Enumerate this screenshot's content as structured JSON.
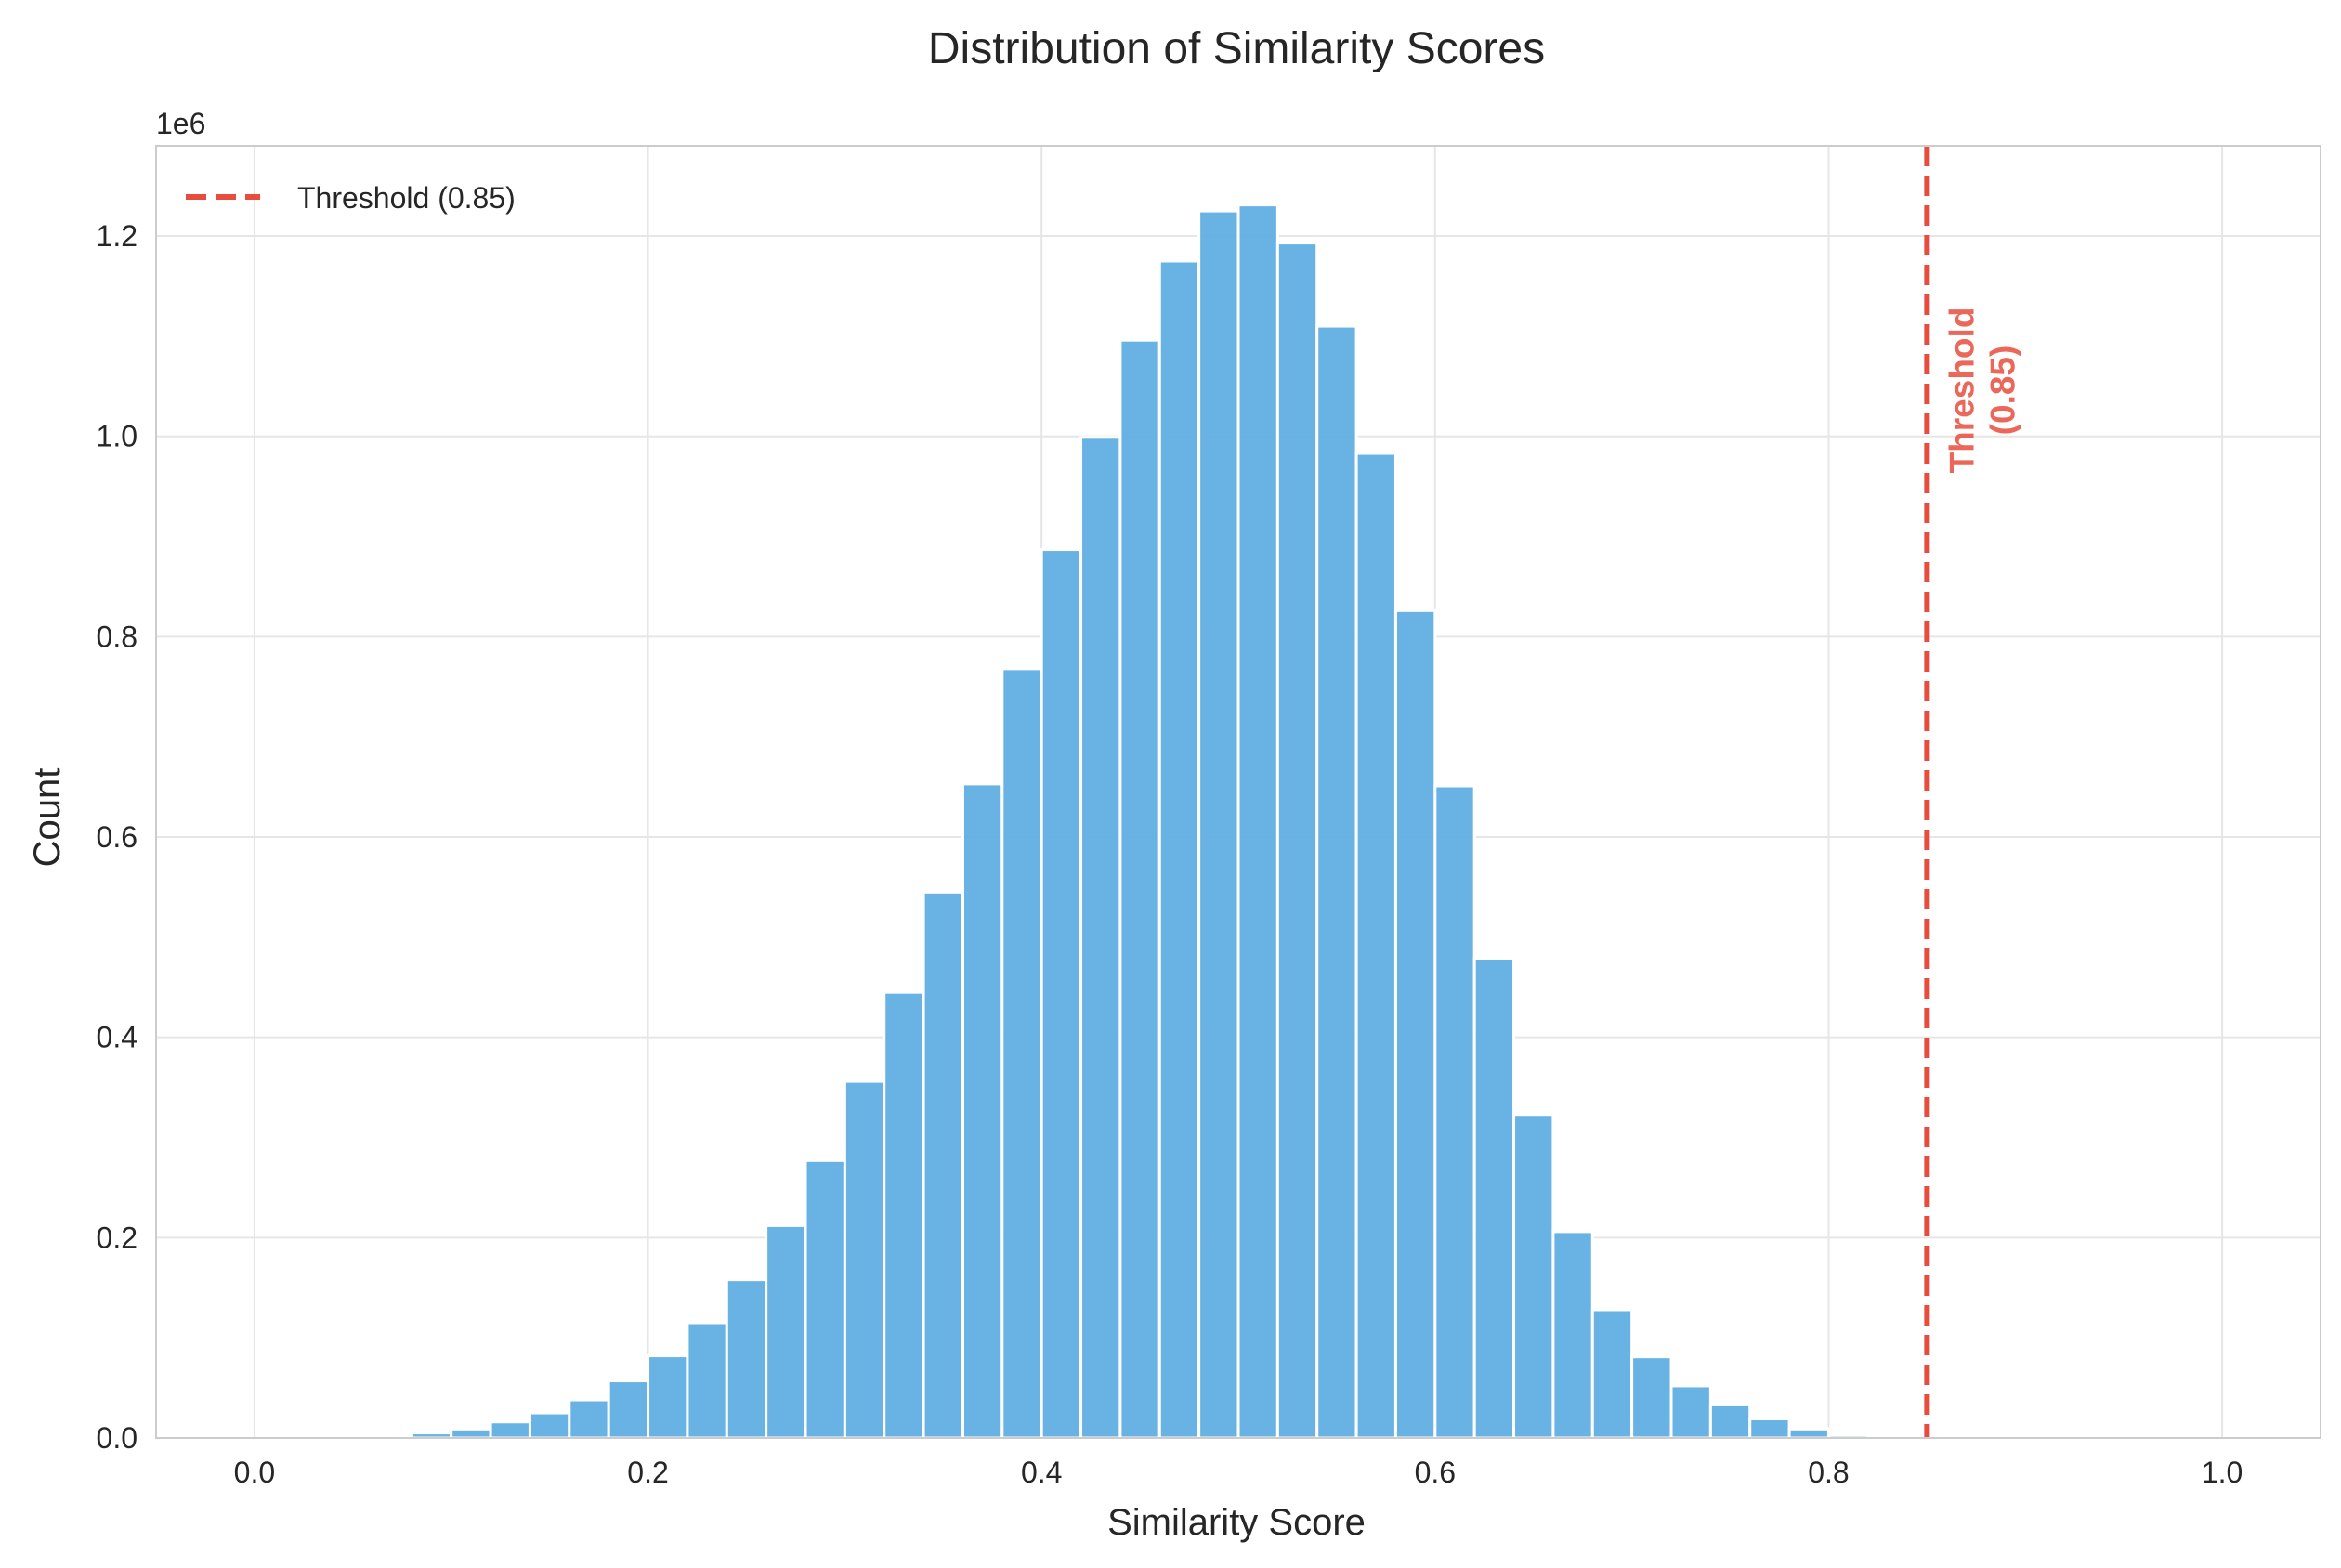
{
  "chart_data": {
    "type": "bar",
    "title": "Distribution of Similarity Scores",
    "xlabel": "Similarity Score",
    "ylabel": "Count",
    "y_scale_label": "1e6",
    "xlim": [
      -0.05,
      1.05
    ],
    "ylim": [
      0,
      1.29
    ],
    "x_ticks": [
      0.0,
      0.2,
      0.4,
      0.6,
      0.8,
      1.0
    ],
    "x_tick_labels": [
      "0.0",
      "0.2",
      "0.4",
      "0.6",
      "0.8",
      "1.0"
    ],
    "y_ticks": [
      0.0,
      0.2,
      0.4,
      0.6,
      0.8,
      1.0,
      1.2
    ],
    "y_tick_labels": [
      "0.0",
      "0.2",
      "0.4",
      "0.6",
      "0.8",
      "1.0",
      "1.2"
    ],
    "grid": true,
    "legend_position": "top-left",
    "bin_width": 0.02,
    "bin_starts": [
      0.06,
      0.08,
      0.1,
      0.12,
      0.14,
      0.16,
      0.18,
      0.2,
      0.22,
      0.24,
      0.26,
      0.28,
      0.3,
      0.32,
      0.34,
      0.36,
      0.38,
      0.4,
      0.42,
      0.44,
      0.46,
      0.48,
      0.5,
      0.52,
      0.54,
      0.56,
      0.58,
      0.6,
      0.62,
      0.64,
      0.66,
      0.68,
      0.7,
      0.72,
      0.74,
      0.76,
      0.78,
      0.8,
      0.82
    ],
    "series": [
      {
        "values": [
          0.002,
          0.005,
          0.009,
          0.016,
          0.025,
          0.038,
          0.057,
          0.082,
          0.115,
          0.158,
          0.212,
          0.277,
          0.356,
          0.445,
          0.545,
          0.653,
          0.768,
          0.887,
          0.999,
          1.096,
          1.175,
          1.225,
          1.231,
          1.193,
          1.11,
          0.983,
          0.826,
          0.651,
          0.479,
          0.323,
          0.206,
          0.128,
          0.081,
          0.052,
          0.033,
          0.019,
          0.009,
          0.003,
          0.001
        ],
        "color": "#5DADE2"
      }
    ],
    "threshold": {
      "x": 0.85,
      "legend_label": "Threshold (0.85)",
      "annotation_lines": [
        "Threshold",
        "(0.85)"
      ],
      "color": "#E74C3C"
    }
  }
}
